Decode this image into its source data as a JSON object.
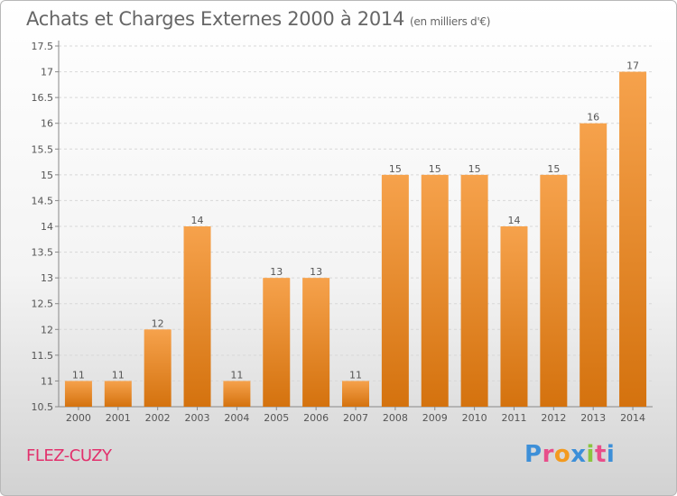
{
  "header": {
    "title": "Achats et Charges Externes 2000 à 2014",
    "subtitle": "(en milliers d'€)"
  },
  "footer": {
    "town": "FLEZ-CUZY",
    "logo_text": "Proxiti",
    "logo_colors": [
      "#3d8fd8",
      "#e84e8a",
      "#f39a1e",
      "#3d8fd8",
      "#8bc53f",
      "#e84e8a",
      "#3d8fd8"
    ]
  },
  "chart_data": {
    "type": "bar",
    "categories": [
      "2000",
      "2001",
      "2002",
      "2003",
      "2004",
      "2005",
      "2006",
      "2007",
      "2008",
      "2009",
      "2010",
      "2011",
      "2012",
      "2013",
      "2014"
    ],
    "values": [
      11,
      11,
      12,
      14,
      11,
      13,
      13,
      11,
      15,
      15,
      15,
      14,
      15,
      16,
      17
    ],
    "data_labels": [
      "11",
      "11",
      "12",
      "14",
      "11",
      "13",
      "13",
      "11",
      "15",
      "15",
      "15",
      "14",
      "15",
      "16",
      "17"
    ],
    "yticks": [
      10.5,
      11,
      11.5,
      12,
      12.5,
      13,
      13.5,
      14,
      14.5,
      15,
      15.5,
      16,
      16.5,
      17,
      17.5
    ],
    "ytick_labels": [
      "10.5",
      "11",
      "11.5",
      "12",
      "12.5",
      "13",
      "13.5",
      "14",
      "14.5",
      "15",
      "15.5",
      "16",
      "16.5",
      "17",
      "17.5"
    ],
    "ylim": [
      10.5,
      17.5
    ],
    "grid": "horizontal-dashed",
    "colors": {
      "bar_top": "#f6a24c",
      "bar_bottom": "#d4720e",
      "label": "#555555"
    }
  }
}
